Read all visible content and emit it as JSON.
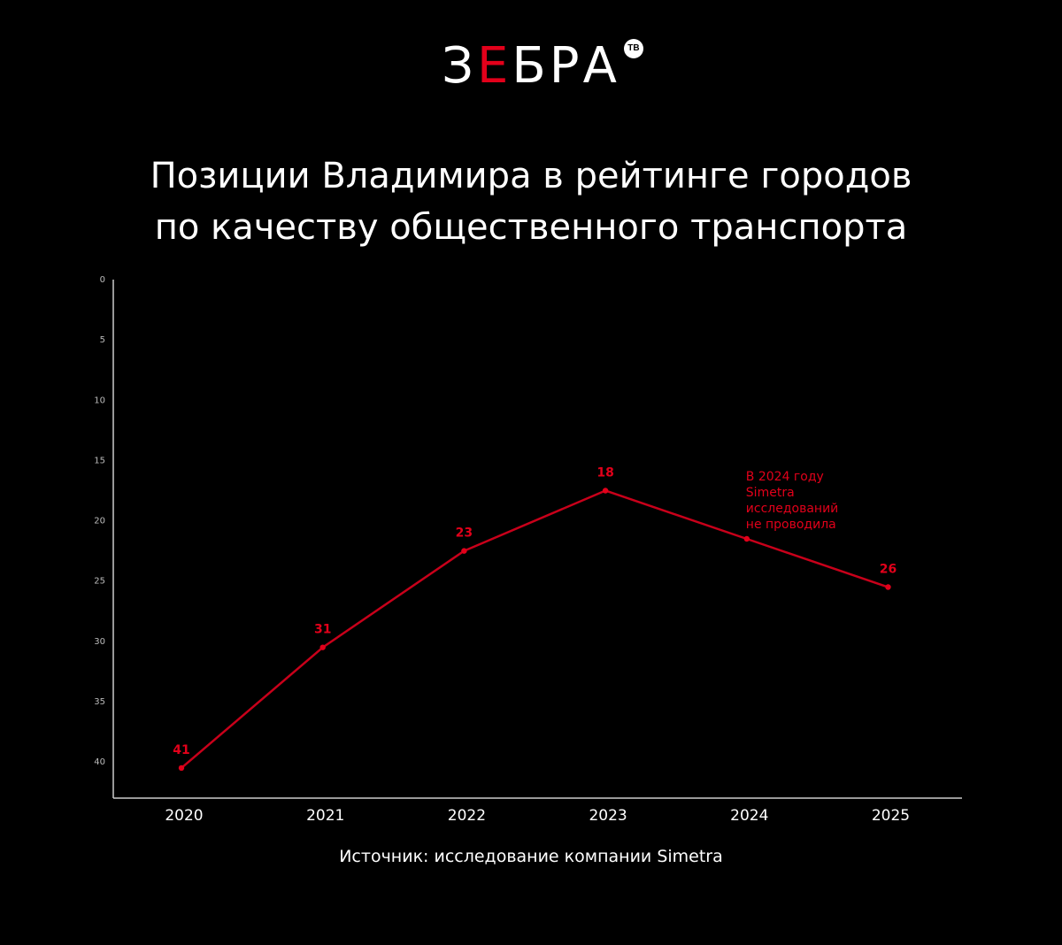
{
  "logo": {
    "prefix": "З",
    "accent": "Е",
    "suffix": "БРА",
    "badge": "ТВ"
  },
  "title_line1": "Позиции Владимира в рейтинге городов",
  "title_line2": "по качеству общественного транспорта",
  "source": "Источник: исследование компании Simetra",
  "colors": {
    "background": "#000000",
    "accent": "#e2001a",
    "text": "#ffffff",
    "axis": "#cccccc"
  },
  "chart_data": {
    "type": "line",
    "x": [
      "2020",
      "2021",
      "2022",
      "2023",
      "2024",
      "2025"
    ],
    "series": [
      {
        "values": [
          40.5,
          30.5,
          22.5,
          17.5,
          21.5,
          25.5
        ],
        "labels": [
          "41",
          "31",
          "23",
          "18",
          "",
          "26"
        ]
      }
    ],
    "y_ticks": [
      "0",
      "5",
      "10",
      "15",
      "20",
      "25",
      "30",
      "35",
      "40"
    ],
    "ylim": [
      0,
      43
    ],
    "y_inverted": true,
    "annotation": {
      "x": "2024",
      "lines": [
        "В 2024 году",
        "Simetra",
        "исследований",
        "не проводила"
      ]
    },
    "grid": false
  }
}
